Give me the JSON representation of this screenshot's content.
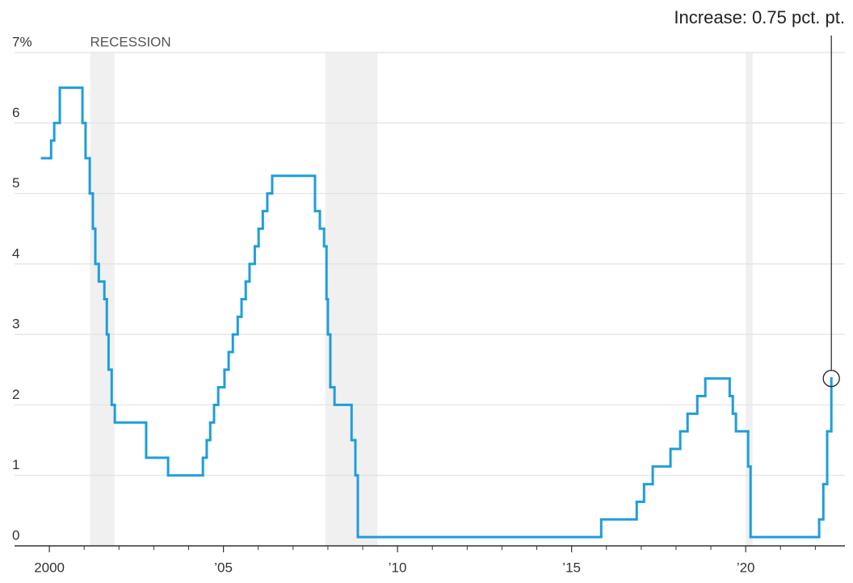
{
  "chart_data": {
    "type": "step",
    "annotation": "Increase: 0.75 pct. pt.",
    "recession_label": "RECESSION",
    "recessions": [
      [
        2001.17,
        2001.87
      ],
      [
        2007.92,
        2009.42
      ],
      [
        2020.0,
        2020.2
      ]
    ],
    "color": "#1f9ddb",
    "recession_color": "#f0f0f0",
    "grid": true,
    "xlim": [
      1999.0,
      2022.85
    ],
    "ylim": [
      0,
      7
    ],
    "xticks": [
      2000,
      {
        "value": 2005,
        "label": "’05"
      },
      {
        "value": 2010,
        "label": "’10"
      },
      {
        "value": 2015,
        "label": "’15"
      },
      {
        "value": 2020,
        "label": "’20"
      }
    ],
    "xminor": [
      2001,
      2002,
      2003,
      2004,
      2006,
      2007,
      2008,
      2009,
      2011,
      2012,
      2013,
      2014,
      2016,
      2017,
      2018,
      2019,
      2021,
      2022
    ],
    "yticks": [
      0,
      1,
      2,
      3,
      4,
      5,
      6,
      {
        "value": 7,
        "label": "7%"
      }
    ],
    "x": [
      1999.79,
      2000.05,
      2000.14,
      2000.3,
      2000.95,
      2001.04,
      2001.16,
      2001.25,
      2001.32,
      2001.42,
      2001.58,
      2001.65,
      2001.7,
      2001.79,
      2001.88,
      2002.78,
      2003.41,
      2004.41,
      2004.52,
      2004.62,
      2004.73,
      2004.85,
      2005.03,
      2005.15,
      2005.27,
      2005.41,
      2005.52,
      2005.64,
      2005.75,
      2005.9,
      2006.01,
      2006.13,
      2006.26,
      2006.4,
      2007.63,
      2007.77,
      2007.89,
      2007.96,
      2008.0,
      2008.07,
      2008.19,
      2008.68,
      2008.79,
      2008.86,
      2015.85,
      2016.87,
      2017.08,
      2017.33,
      2017.84,
      2018.12,
      2018.33,
      2018.61,
      2018.84,
      2019.54,
      2019.63,
      2019.72,
      2020.07,
      2020.14,
      2022.11,
      2022.23,
      2022.34,
      2022.46
    ],
    "values": [
      5.5,
      5.75,
      6.0,
      6.5,
      6.0,
      5.5,
      5.0,
      4.5,
      4.0,
      3.75,
      3.5,
      3.0,
      2.5,
      2.0,
      1.75,
      1.25,
      1.0,
      1.25,
      1.5,
      1.75,
      2.0,
      2.25,
      2.5,
      2.75,
      3.0,
      3.25,
      3.5,
      3.75,
      4.0,
      4.25,
      4.5,
      4.75,
      5.0,
      5.25,
      4.75,
      4.5,
      4.25,
      3.5,
      3.0,
      2.25,
      2.0,
      1.5,
      1.0,
      0.125,
      0.375,
      0.625,
      0.875,
      1.125,
      1.375,
      1.625,
      1.875,
      2.125,
      2.375,
      2.125,
      1.875,
      1.625,
      1.125,
      0.125,
      0.375,
      0.875,
      1.625,
      2.375
    ]
  }
}
